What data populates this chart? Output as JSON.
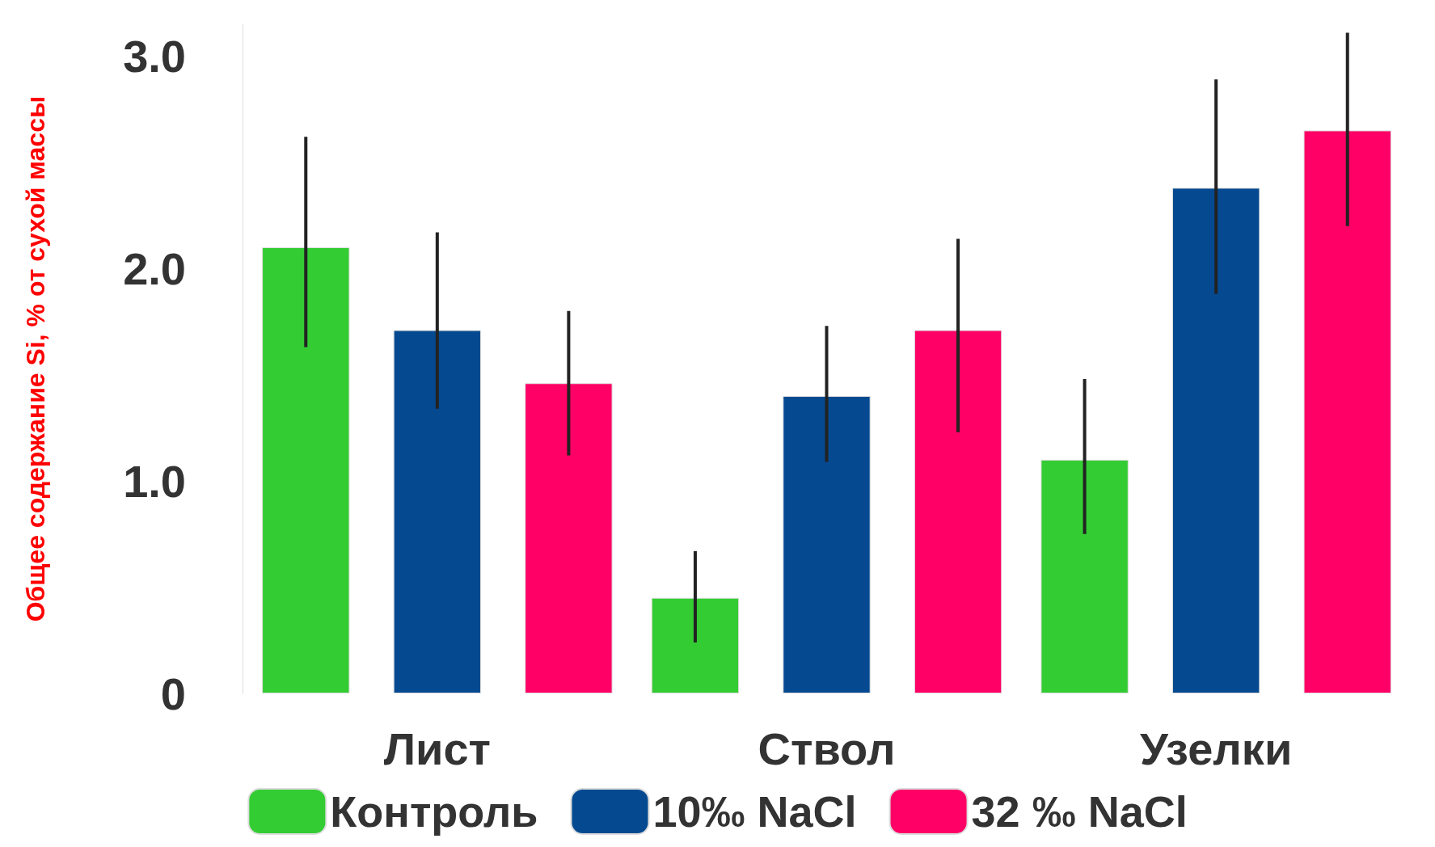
{
  "chart_data": {
    "type": "bar",
    "ylabel": "Общее содержание Si, % от сухой массы",
    "categories": [
      "Лист",
      "Ствол",
      "Узелки"
    ],
    "series": [
      {
        "name": "Контроль",
        "color": "#33cc33",
        "values": [
          2.1,
          0.45,
          1.1
        ],
        "errors": [
          [
            1.63,
            2.62
          ],
          [
            0.24,
            0.67
          ],
          [
            0.75,
            1.48
          ]
        ]
      },
      {
        "name": "10‰ NaCl",
        "color": "#054a91",
        "values": [
          1.71,
          1.4,
          2.38
        ],
        "errors": [
          [
            1.34,
            2.17
          ],
          [
            1.09,
            1.73
          ],
          [
            1.88,
            2.89
          ]
        ]
      },
      {
        "name": "32 ‰ NaCl",
        "color": "#ff0066",
        "values": [
          1.46,
          1.71,
          2.65
        ],
        "errors": [
          [
            1.12,
            1.8
          ],
          [
            1.23,
            2.14
          ],
          [
            2.2,
            3.11
          ]
        ]
      }
    ],
    "ylim": [
      0,
      3.15
    ],
    "yticks": [
      0,
      {
        "value": 1,
        "label": "1.0"
      },
      {
        "value": 2,
        "label": "2.0"
      },
      {
        "value": 3,
        "label": "3.0"
      }
    ],
    "grid": false,
    "legend": "bottom"
  }
}
